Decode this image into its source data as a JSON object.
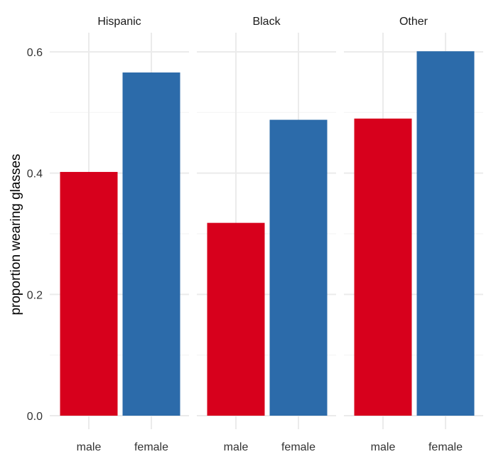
{
  "chart_data": {
    "type": "bar",
    "ylabel": "proportion wearing glasses",
    "xlabel": "",
    "ylim": [
      0,
      0.63
    ],
    "y_ticks": [
      "0.0",
      "0.2",
      "0.4",
      "0.6"
    ],
    "y_tick_values": [
      0,
      0.2,
      0.4,
      0.6
    ],
    "grid": true,
    "legend": "none",
    "categories": [
      "male",
      "female"
    ],
    "colors": {
      "male": "#D7001C",
      "female": "#2C6BAA",
      "grid_major": "#EBEBEB",
      "grid_minor": "#F5F5F5",
      "text": "#333333"
    },
    "facets": [
      {
        "label": "Hispanic",
        "values": [
          0.402,
          0.566
        ]
      },
      {
        "label": "Black",
        "values": [
          0.318,
          0.488
        ]
      },
      {
        "label": "Other",
        "values": [
          0.49,
          0.601
        ]
      }
    ]
  }
}
